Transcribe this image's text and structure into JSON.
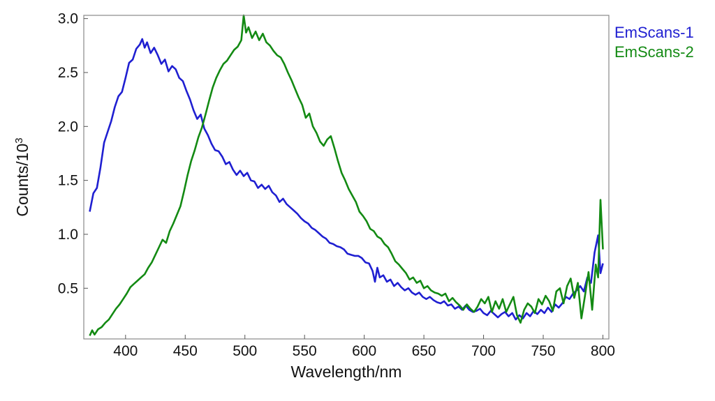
{
  "chart_data": {
    "type": "line",
    "xlabel": "Wavelength/nm",
    "ylabel": "Counts/10",
    "ylabel_exponent": "3",
    "xlim": [
      365,
      805
    ],
    "ylim": [
      0.03,
      3.03
    ],
    "x_ticks": [
      400,
      450,
      500,
      550,
      600,
      650,
      700,
      750,
      800
    ],
    "y_ticks": [
      0.5,
      1.0,
      1.5,
      2.0,
      2.5,
      3.0
    ],
    "y_tick_labels": [
      "0.5",
      "1.0",
      "1.5",
      "2.0",
      "2.5",
      "3.0"
    ],
    "grid": false,
    "legend_position": "top-right outside",
    "series": [
      {
        "name": "EmScans-1",
        "color": "#1f1fd1",
        "points": [
          [
            370,
            1.21
          ],
          [
            373,
            1.38
          ],
          [
            376,
            1.43
          ],
          [
            379,
            1.62
          ],
          [
            382,
            1.85
          ],
          [
            385,
            1.95
          ],
          [
            388,
            2.05
          ],
          [
            391,
            2.18
          ],
          [
            394,
            2.28
          ],
          [
            397,
            2.32
          ],
          [
            400,
            2.45
          ],
          [
            403,
            2.59
          ],
          [
            406,
            2.62
          ],
          [
            409,
            2.72
          ],
          [
            412,
            2.76
          ],
          [
            414,
            2.81
          ],
          [
            416,
            2.73
          ],
          [
            418,
            2.78
          ],
          [
            421,
            2.68
          ],
          [
            424,
            2.73
          ],
          [
            427,
            2.66
          ],
          [
            430,
            2.58
          ],
          [
            433,
            2.62
          ],
          [
            436,
            2.51
          ],
          [
            439,
            2.56
          ],
          [
            442,
            2.53
          ],
          [
            445,
            2.45
          ],
          [
            448,
            2.42
          ],
          [
            451,
            2.33
          ],
          [
            454,
            2.25
          ],
          [
            457,
            2.15
          ],
          [
            460,
            2.07
          ],
          [
            463,
            2.11
          ],
          [
            466,
            1.98
          ],
          [
            469,
            1.92
          ],
          [
            472,
            1.84
          ],
          [
            475,
            1.78
          ],
          [
            478,
            1.77
          ],
          [
            481,
            1.72
          ],
          [
            484,
            1.65
          ],
          [
            487,
            1.67
          ],
          [
            490,
            1.6
          ],
          [
            493,
            1.55
          ],
          [
            496,
            1.59
          ],
          [
            499,
            1.54
          ],
          [
            502,
            1.57
          ],
          [
            505,
            1.5
          ],
          [
            508,
            1.49
          ],
          [
            511,
            1.43
          ],
          [
            514,
            1.46
          ],
          [
            517,
            1.42
          ],
          [
            520,
            1.45
          ],
          [
            523,
            1.39
          ],
          [
            526,
            1.36
          ],
          [
            529,
            1.3
          ],
          [
            532,
            1.33
          ],
          [
            535,
            1.28
          ],
          [
            538,
            1.25
          ],
          [
            541,
            1.22
          ],
          [
            544,
            1.19
          ],
          [
            547,
            1.15
          ],
          [
            550,
            1.12
          ],
          [
            553,
            1.1
          ],
          [
            556,
            1.06
          ],
          [
            559,
            1.04
          ],
          [
            562,
            1.01
          ],
          [
            565,
            0.98
          ],
          [
            568,
            0.96
          ],
          [
            571,
            0.92
          ],
          [
            574,
            0.91
          ],
          [
            577,
            0.89
          ],
          [
            580,
            0.88
          ],
          [
            583,
            0.86
          ],
          [
            586,
            0.82
          ],
          [
            589,
            0.81
          ],
          [
            592,
            0.8
          ],
          [
            595,
            0.8
          ],
          [
            598,
            0.78
          ],
          [
            601,
            0.74
          ],
          [
            604,
            0.73
          ],
          [
            607,
            0.66
          ],
          [
            609,
            0.56
          ],
          [
            611,
            0.69
          ],
          [
            613,
            0.6
          ],
          [
            616,
            0.62
          ],
          [
            619,
            0.56
          ],
          [
            622,
            0.58
          ],
          [
            625,
            0.52
          ],
          [
            628,
            0.55
          ],
          [
            631,
            0.51
          ],
          [
            634,
            0.48
          ],
          [
            637,
            0.5
          ],
          [
            640,
            0.46
          ],
          [
            643,
            0.44
          ],
          [
            646,
            0.46
          ],
          [
            649,
            0.42
          ],
          [
            652,
            0.4
          ],
          [
            655,
            0.42
          ],
          [
            658,
            0.39
          ],
          [
            661,
            0.37
          ],
          [
            664,
            0.36
          ],
          [
            667,
            0.38
          ],
          [
            670,
            0.34
          ],
          [
            673,
            0.35
          ],
          [
            676,
            0.31
          ],
          [
            679,
            0.33
          ],
          [
            682,
            0.3
          ],
          [
            685,
            0.34
          ],
          [
            688,
            0.3
          ],
          [
            691,
            0.28
          ],
          [
            694,
            0.29
          ],
          [
            697,
            0.31
          ],
          [
            700,
            0.27
          ],
          [
            703,
            0.25
          ],
          [
            706,
            0.29
          ],
          [
            709,
            0.26
          ],
          [
            712,
            0.23
          ],
          [
            715,
            0.26
          ],
          [
            718,
            0.28
          ],
          [
            721,
            0.24
          ],
          [
            724,
            0.27
          ],
          [
            727,
            0.21
          ],
          [
            730,
            0.25
          ],
          [
            733,
            0.22
          ],
          [
            736,
            0.27
          ],
          [
            739,
            0.24
          ],
          [
            742,
            0.29
          ],
          [
            745,
            0.26
          ],
          [
            748,
            0.3
          ],
          [
            751,
            0.27
          ],
          [
            754,
            0.32
          ],
          [
            757,
            0.28
          ],
          [
            760,
            0.35
          ],
          [
            763,
            0.32
          ],
          [
            766,
            0.36
          ],
          [
            769,
            0.42
          ],
          [
            772,
            0.4
          ],
          [
            775,
            0.45
          ],
          [
            778,
            0.48
          ],
          [
            781,
            0.52
          ],
          [
            784,
            0.47
          ],
          [
            787,
            0.6
          ],
          [
            790,
            0.55
          ],
          [
            793,
            0.83
          ],
          [
            796,
            0.99
          ],
          [
            798,
            0.64
          ],
          [
            800,
            0.73
          ]
        ]
      },
      {
        "name": "EmScans-2",
        "color": "#138a13",
        "points": [
          [
            370,
            0.06
          ],
          [
            372,
            0.11
          ],
          [
            374,
            0.07
          ],
          [
            377,
            0.12
          ],
          [
            380,
            0.14
          ],
          [
            383,
            0.18
          ],
          [
            386,
            0.21
          ],
          [
            389,
            0.26
          ],
          [
            392,
            0.31
          ],
          [
            395,
            0.35
          ],
          [
            398,
            0.4
          ],
          [
            401,
            0.45
          ],
          [
            404,
            0.51
          ],
          [
            407,
            0.54
          ],
          [
            410,
            0.57
          ],
          [
            413,
            0.6
          ],
          [
            416,
            0.63
          ],
          [
            419,
            0.69
          ],
          [
            422,
            0.74
          ],
          [
            425,
            0.81
          ],
          [
            428,
            0.88
          ],
          [
            431,
            0.95
          ],
          [
            434,
            0.92
          ],
          [
            437,
            1.03
          ],
          [
            440,
            1.1
          ],
          [
            443,
            1.18
          ],
          [
            446,
            1.26
          ],
          [
            449,
            1.4
          ],
          [
            452,
            1.55
          ],
          [
            455,
            1.68
          ],
          [
            458,
            1.78
          ],
          [
            461,
            1.9
          ],
          [
            464,
            1.99
          ],
          [
            467,
            2.11
          ],
          [
            470,
            2.24
          ],
          [
            473,
            2.36
          ],
          [
            476,
            2.45
          ],
          [
            479,
            2.52
          ],
          [
            482,
            2.58
          ],
          [
            485,
            2.61
          ],
          [
            488,
            2.66
          ],
          [
            491,
            2.71
          ],
          [
            494,
            2.74
          ],
          [
            497,
            2.8
          ],
          [
            499,
            3.03
          ],
          [
            501,
            2.87
          ],
          [
            503,
            2.92
          ],
          [
            506,
            2.82
          ],
          [
            509,
            2.88
          ],
          [
            512,
            2.8
          ],
          [
            515,
            2.86
          ],
          [
            518,
            2.78
          ],
          [
            521,
            2.75
          ],
          [
            524,
            2.7
          ],
          [
            527,
            2.66
          ],
          [
            530,
            2.64
          ],
          [
            533,
            2.58
          ],
          [
            536,
            2.5
          ],
          [
            539,
            2.43
          ],
          [
            542,
            2.35
          ],
          [
            545,
            2.27
          ],
          [
            548,
            2.2
          ],
          [
            551,
            2.08
          ],
          [
            554,
            2.12
          ],
          [
            557,
            2.0
          ],
          [
            560,
            1.94
          ],
          [
            563,
            1.86
          ],
          [
            566,
            1.82
          ],
          [
            569,
            1.88
          ],
          [
            572,
            1.91
          ],
          [
            575,
            1.8
          ],
          [
            578,
            1.68
          ],
          [
            581,
            1.57
          ],
          [
            584,
            1.5
          ],
          [
            587,
            1.42
          ],
          [
            590,
            1.36
          ],
          [
            593,
            1.3
          ],
          [
            596,
            1.21
          ],
          [
            599,
            1.17
          ],
          [
            602,
            1.12
          ],
          [
            605,
            1.05
          ],
          [
            608,
            1.03
          ],
          [
            611,
            0.98
          ],
          [
            614,
            0.96
          ],
          [
            617,
            0.91
          ],
          [
            620,
            0.88
          ],
          [
            623,
            0.82
          ],
          [
            626,
            0.75
          ],
          [
            629,
            0.72
          ],
          [
            632,
            0.68
          ],
          [
            635,
            0.64
          ],
          [
            638,
            0.58
          ],
          [
            641,
            0.6
          ],
          [
            644,
            0.55
          ],
          [
            647,
            0.57
          ],
          [
            650,
            0.5
          ],
          [
            653,
            0.52
          ],
          [
            656,
            0.48
          ],
          [
            659,
            0.46
          ],
          [
            662,
            0.45
          ],
          [
            665,
            0.43
          ],
          [
            668,
            0.45
          ],
          [
            671,
            0.38
          ],
          [
            674,
            0.41
          ],
          [
            677,
            0.37
          ],
          [
            680,
            0.34
          ],
          [
            683,
            0.3
          ],
          [
            686,
            0.35
          ],
          [
            689,
            0.31
          ],
          [
            692,
            0.28
          ],
          [
            695,
            0.33
          ],
          [
            698,
            0.4
          ],
          [
            701,
            0.36
          ],
          [
            704,
            0.42
          ],
          [
            707,
            0.28
          ],
          [
            710,
            0.38
          ],
          [
            713,
            0.31
          ],
          [
            716,
            0.4
          ],
          [
            719,
            0.28
          ],
          [
            722,
            0.35
          ],
          [
            725,
            0.42
          ],
          [
            728,
            0.25
          ],
          [
            731,
            0.18
          ],
          [
            734,
            0.3
          ],
          [
            737,
            0.36
          ],
          [
            740,
            0.33
          ],
          [
            743,
            0.27
          ],
          [
            746,
            0.4
          ],
          [
            749,
            0.35
          ],
          [
            752,
            0.43
          ],
          [
            755,
            0.38
          ],
          [
            758,
            0.29
          ],
          [
            761,
            0.47
          ],
          [
            764,
            0.5
          ],
          [
            767,
            0.36
          ],
          [
            770,
            0.52
          ],
          [
            773,
            0.59
          ],
          [
            776,
            0.41
          ],
          [
            779,
            0.55
          ],
          [
            782,
            0.22
          ],
          [
            785,
            0.43
          ],
          [
            788,
            0.65
          ],
          [
            791,
            0.3
          ],
          [
            794,
            0.72
          ],
          [
            796,
            0.6
          ],
          [
            798,
            1.32
          ],
          [
            800,
            0.86
          ]
        ]
      }
    ]
  }
}
